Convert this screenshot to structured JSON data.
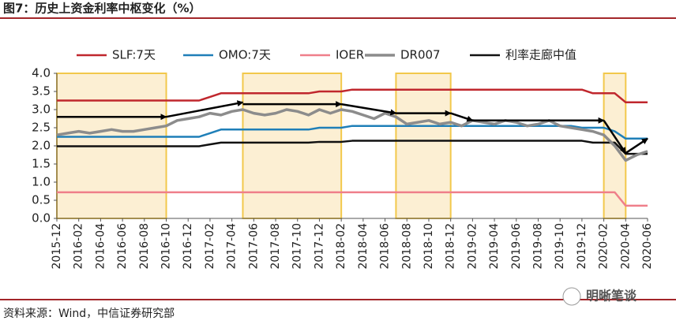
{
  "chart_data": {
    "type": "line",
    "title": "图7：历史上资金利率中枢变化（%）",
    "source": "资料来源：Wind，中信证券研究部",
    "watermark": "明晰笔谈",
    "categories": [
      "2015-12",
      null,
      "2016-02",
      null,
      "2016-04",
      null,
      "2016-06",
      null,
      "2016-08",
      null,
      "2016-10",
      null,
      "2016-12",
      null,
      "2017-02",
      null,
      "2017-04",
      null,
      "2017-06",
      null,
      "2017-08",
      null,
      "2017-10",
      null,
      "2017-12",
      null,
      "2018-02",
      null,
      "2018-04",
      null,
      "2018-06",
      null,
      "2018-08",
      null,
      "2018-10",
      null,
      "2018-12",
      null,
      "2019-02",
      null,
      "2019-04",
      null,
      "2019-06",
      null,
      "2019-08",
      null,
      "2019-10",
      null,
      "2019-12",
      null,
      "2020-02",
      null,
      "2020-04",
      null,
      "2020-06"
    ],
    "series": [
      {
        "name": "SLF:7天",
        "color": "#c0272d",
        "width": 2.5,
        "values": [
          3.25,
          3.25,
          3.25,
          3.25,
          3.25,
          3.25,
          3.25,
          3.25,
          3.25,
          3.25,
          3.25,
          3.25,
          3.25,
          3.25,
          3.35,
          3.45,
          3.45,
          3.45,
          3.45,
          3.45,
          3.45,
          3.45,
          3.45,
          3.45,
          3.5,
          3.5,
          3.5,
          3.55,
          3.55,
          3.55,
          3.55,
          3.55,
          3.55,
          3.55,
          3.55,
          3.55,
          3.55,
          3.55,
          3.55,
          3.55,
          3.55,
          3.55,
          3.55,
          3.55,
          3.55,
          3.55,
          3.55,
          3.55,
          3.55,
          3.45,
          3.45,
          3.45,
          3.2,
          3.2,
          3.2
        ]
      },
      {
        "name": "OMO:7天",
        "color": "#1f7fb8",
        "width": 2.5,
        "values": [
          2.25,
          2.25,
          2.25,
          2.25,
          2.25,
          2.25,
          2.25,
          2.25,
          2.25,
          2.25,
          2.25,
          2.25,
          2.25,
          2.25,
          2.35,
          2.45,
          2.45,
          2.45,
          2.45,
          2.45,
          2.45,
          2.45,
          2.45,
          2.45,
          2.5,
          2.5,
          2.5,
          2.55,
          2.55,
          2.55,
          2.55,
          2.55,
          2.55,
          2.55,
          2.55,
          2.55,
          2.55,
          2.55,
          2.55,
          2.55,
          2.55,
          2.55,
          2.55,
          2.55,
          2.55,
          2.55,
          2.55,
          2.55,
          2.5,
          2.5,
          2.5,
          2.4,
          2.2,
          2.2,
          2.2
        ]
      },
      {
        "name": "IOER",
        "color": "#ef7f8a",
        "width": 2.5,
        "values": [
          0.72,
          0.72,
          0.72,
          0.72,
          0.72,
          0.72,
          0.72,
          0.72,
          0.72,
          0.72,
          0.72,
          0.72,
          0.72,
          0.72,
          0.72,
          0.72,
          0.72,
          0.72,
          0.72,
          0.72,
          0.72,
          0.72,
          0.72,
          0.72,
          0.72,
          0.72,
          0.72,
          0.72,
          0.72,
          0.72,
          0.72,
          0.72,
          0.72,
          0.72,
          0.72,
          0.72,
          0.72,
          0.72,
          0.72,
          0.72,
          0.72,
          0.72,
          0.72,
          0.72,
          0.72,
          0.72,
          0.72,
          0.72,
          0.72,
          0.72,
          0.72,
          0.72,
          0.35,
          0.35,
          0.35
        ]
      },
      {
        "name": "DR007",
        "color": "#8c8c8c",
        "width": 3.5,
        "values": [
          2.3,
          2.35,
          2.4,
          2.35,
          2.4,
          2.45,
          2.4,
          2.4,
          2.45,
          2.5,
          2.55,
          2.7,
          2.75,
          2.8,
          2.9,
          2.85,
          2.95,
          3.0,
          2.9,
          2.85,
          2.9,
          3.0,
          2.95,
          2.85,
          3.0,
          2.9,
          3.0,
          2.95,
          2.85,
          2.75,
          2.9,
          2.8,
          2.6,
          2.65,
          2.7,
          2.6,
          2.65,
          2.55,
          2.7,
          2.65,
          2.6,
          2.7,
          2.65,
          2.55,
          2.6,
          2.7,
          2.55,
          2.5,
          2.45,
          2.4,
          2.3,
          2.0,
          1.6,
          1.75,
          1.85
        ]
      },
      {
        "name": "利率走廊中值",
        "color": "#111111",
        "width": 2.5,
        "values": [
          1.99,
          1.99,
          1.99,
          1.99,
          1.99,
          1.99,
          1.99,
          1.99,
          1.99,
          1.99,
          1.99,
          1.99,
          1.99,
          1.99,
          2.04,
          2.09,
          2.09,
          2.09,
          2.09,
          2.09,
          2.09,
          2.09,
          2.09,
          2.09,
          2.11,
          2.11,
          2.11,
          2.14,
          2.14,
          2.14,
          2.14,
          2.14,
          2.14,
          2.14,
          2.14,
          2.14,
          2.14,
          2.14,
          2.14,
          2.14,
          2.14,
          2.14,
          2.14,
          2.14,
          2.14,
          2.14,
          2.14,
          2.14,
          2.14,
          2.09,
          2.09,
          2.09,
          1.78,
          1.78,
          1.78
        ]
      }
    ],
    "highlight_ranges": [
      [
        0,
        10
      ],
      [
        17,
        26
      ],
      [
        31,
        36
      ],
      [
        50,
        52
      ]
    ],
    "arrows": [
      {
        "x": [
          0,
          10
        ],
        "y": [
          2.8,
          2.8
        ]
      },
      {
        "x": [
          10,
          17
        ],
        "y": [
          2.8,
          3.2
        ]
      },
      {
        "x": [
          17,
          26
        ],
        "y": [
          3.15,
          3.15
        ]
      },
      {
        "x": [
          26,
          31
        ],
        "y": [
          3.15,
          2.9
        ]
      },
      {
        "x": [
          31,
          36
        ],
        "y": [
          2.9,
          2.9
        ]
      },
      {
        "x": [
          36,
          38
        ],
        "y": [
          2.9,
          2.7
        ]
      },
      {
        "x": [
          38,
          50
        ],
        "y": [
          2.7,
          2.7
        ]
      },
      {
        "x": [
          50,
          52
        ],
        "y": [
          2.7,
          1.8
        ]
      },
      {
        "x": [
          52,
          54
        ],
        "y": [
          1.8,
          2.2
        ]
      }
    ],
    "ylim": [
      0,
      4
    ],
    "yticks": [
      {
        "value": 0,
        "label": "0.0"
      },
      0.5,
      {
        "value": 1,
        "label": "1.0"
      },
      1.5,
      {
        "value": 2,
        "label": "2.0"
      },
      2.5,
      {
        "value": 3,
        "label": "3.0"
      },
      3.5,
      {
        "value": 4,
        "label": "4.0"
      }
    ],
    "grid": false
  }
}
